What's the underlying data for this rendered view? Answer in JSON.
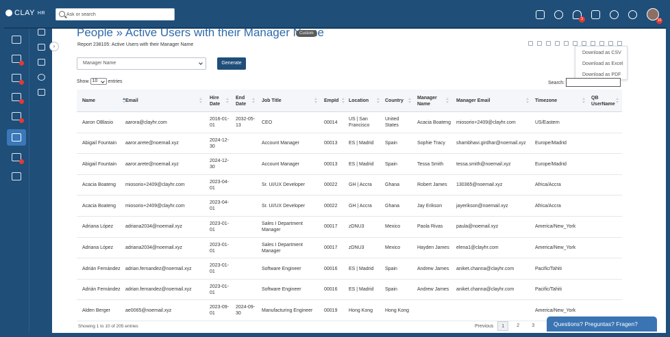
{
  "app": {
    "logo_text": "CLAY",
    "logo_suffix": "HR"
  },
  "search": {
    "placeholder": "Ask or search"
  },
  "topbar": {
    "notification_count": "3",
    "avatar_badge": "10"
  },
  "page": {
    "title": "People » Active Users with their Manager Name",
    "custom_label": "Custom",
    "report_subtitle": "Report 238105: Active Users with their Manager Name"
  },
  "download_menu": [
    "Download as CSV",
    "Download as Excel",
    "Download as PDF"
  ],
  "filters": {
    "manager_select_value": "Manager Name",
    "generate_label": "Generate",
    "show_label": "Show",
    "entries_value": "10",
    "entries_label": "entries",
    "search_label": "Search:"
  },
  "table": {
    "headers": [
      "Name",
      "Email",
      "Hire Date",
      "End Date",
      "Job Title",
      "EmpId",
      "Location",
      "Country",
      "Manager Name",
      "Manager Email",
      "Timezone",
      "QB UserName"
    ],
    "rows": [
      [
        "Aaron OBlasio",
        "aarora@clayhr.com",
        "2016-01-01",
        "2032-05-13",
        "CEO",
        "00014",
        "US | San Francisco",
        "United States",
        "Acacia Boateng",
        "miosorio+2409@clayhr.com",
        "US/Eastern",
        ""
      ],
      [
        "Abigail Fountain",
        "aaror.arete@noemail.xyz",
        "2024-12-30",
        "",
        "Account Manager",
        "00013",
        "ES | Madrid",
        "Spain",
        "Sophie Tracy",
        "shambhavi.girdhar@noemail.xyz",
        "Europe/Madrid",
        ""
      ],
      [
        "Abigail Fountain",
        "aaror.arete@noemail.xyz",
        "2024-12-30",
        "",
        "Account Manager",
        "00013",
        "ES | Madrid",
        "Spain",
        "Tessa Smith",
        "tessa.smith@noemail.xyz",
        "Europe/Madrid",
        ""
      ],
      [
        "Acacia Boateng",
        "miosorio+2409@clayhr.com",
        "2023-04-01",
        "",
        "Sr. UI/UX Developer",
        "00022",
        "GH | Accra",
        "Ghana",
        "Robert James",
        "130365@noemail.xyz",
        "Africa/Accra",
        ""
      ],
      [
        "Acacia Boateng",
        "miosorio+2409@clayhr.com",
        "2023-04-01",
        "",
        "Sr. UI/UX Developer",
        "00022",
        "GH | Accra",
        "Ghana",
        "Jay Erikson",
        "jayerikson@noemail.xyz",
        "Africa/Accra",
        ""
      ],
      [
        "Adriana López",
        "adriana2034@noemail.xyz",
        "2023-01-01",
        "",
        "Sales I Department Manager",
        "00017",
        "zDNU3",
        "Mexico",
        "Paola Rivas",
        "paula@noemail.xyz",
        "America/New_York",
        ""
      ],
      [
        "Adriana López",
        "adriana2034@noemail.xyz",
        "2023-01-01",
        "",
        "Sales I Department Manager",
        "00017",
        "zDNU3",
        "Mexico",
        "Hayden James",
        "elena1@clayhr.com",
        "America/New_York",
        ""
      ],
      [
        "Adrián Fernández",
        "adrian.fernandez@noemail.xyz",
        "2023-01-01",
        "",
        "Software Engineer",
        "00016",
        "ES | Madrid",
        "Spain",
        "Andrew James",
        "aniket.channa@clayhr.com",
        "Pacific/Tahiti",
        ""
      ],
      [
        "Adrián Fernández",
        "adrian.fernandez@noemail.xyz",
        "2023-01-01",
        "",
        "Software Engineer",
        "00016",
        "ES | Madrid",
        "Spain",
        "Andrew James",
        "aniket.channa@clayhr.com",
        "Pacific/Tahiti",
        ""
      ],
      [
        "Alden Berger",
        "ae0065@noemail.xyz",
        "2023-09-01",
        "2024-09-30",
        "Manufacturing Engineer",
        "00019",
        "Hong Kong",
        "Hong Kong",
        "",
        "",
        "America/New_York",
        ""
      ]
    ]
  },
  "footer": {
    "info": "Showing 1 to 10 of 205 entries",
    "previous": "Previous",
    "pages": [
      "1",
      "2",
      "3"
    ]
  },
  "help": {
    "label": "Questions? Preguntas? Fragen?"
  }
}
